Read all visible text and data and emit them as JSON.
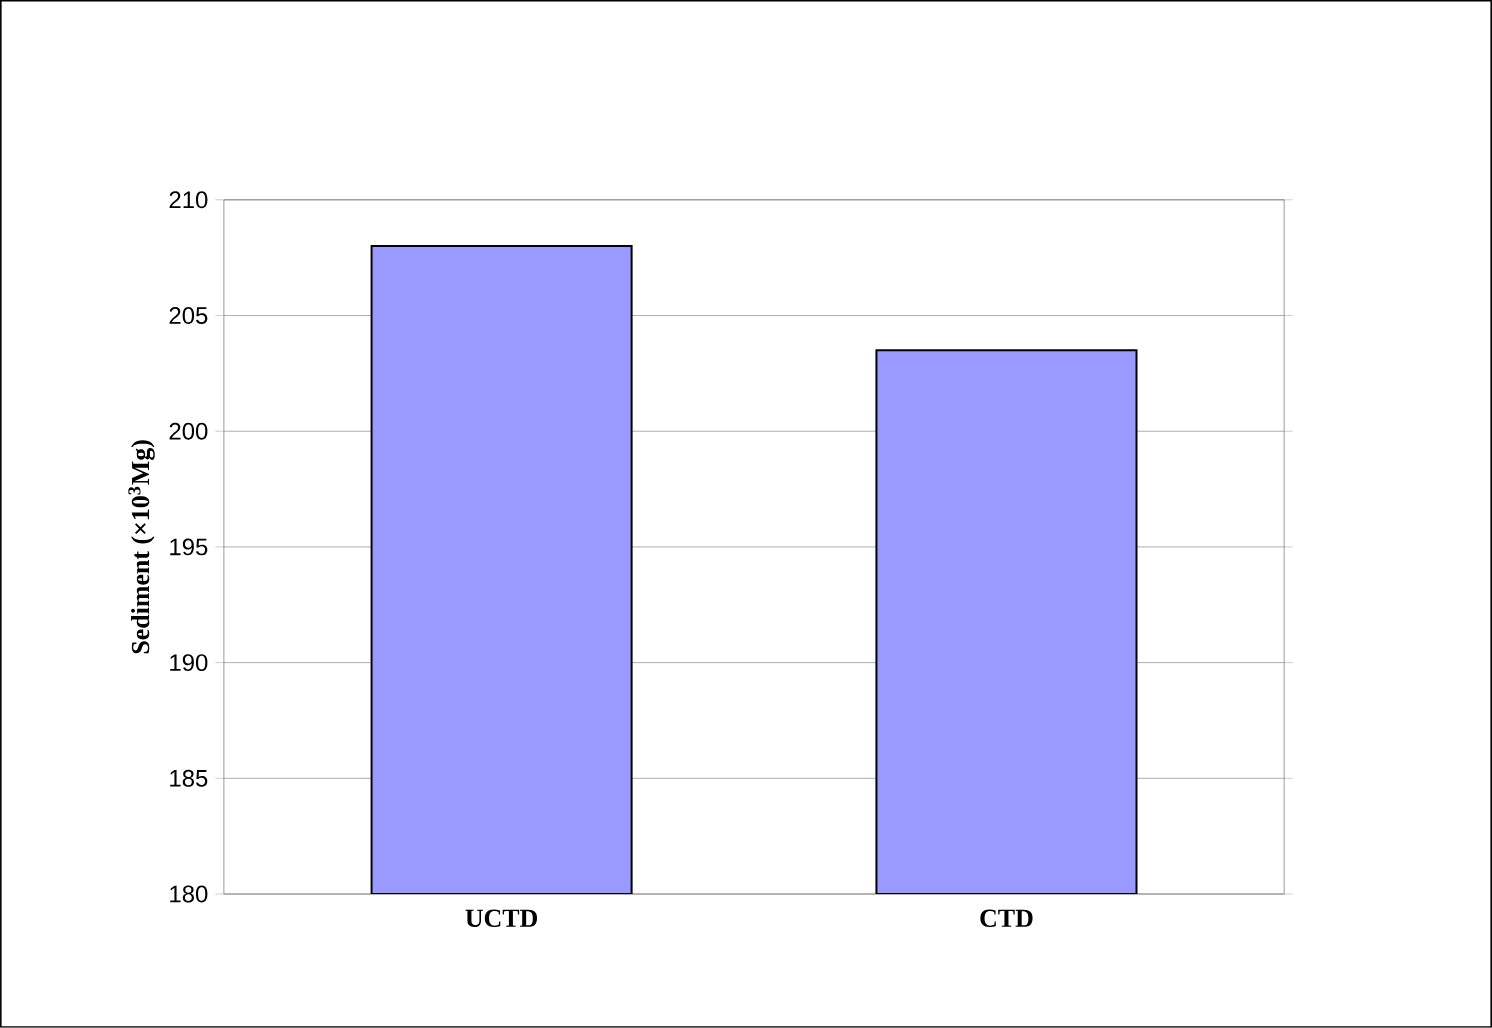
{
  "chart_data": {
    "type": "bar",
    "ylabel": "**Sediment (×10$^{3}$Mg)**",
    "categories": [
      "UCTD",
      "CTD"
    ],
    "values": [
      208,
      203.5
    ],
    "color": "#9999ff",
    "ylim": [
      180,
      210
    ],
    "yticks": [
      180,
      185,
      190,
      195,
      200,
      205,
      210
    ],
    "grid": "y"
  }
}
